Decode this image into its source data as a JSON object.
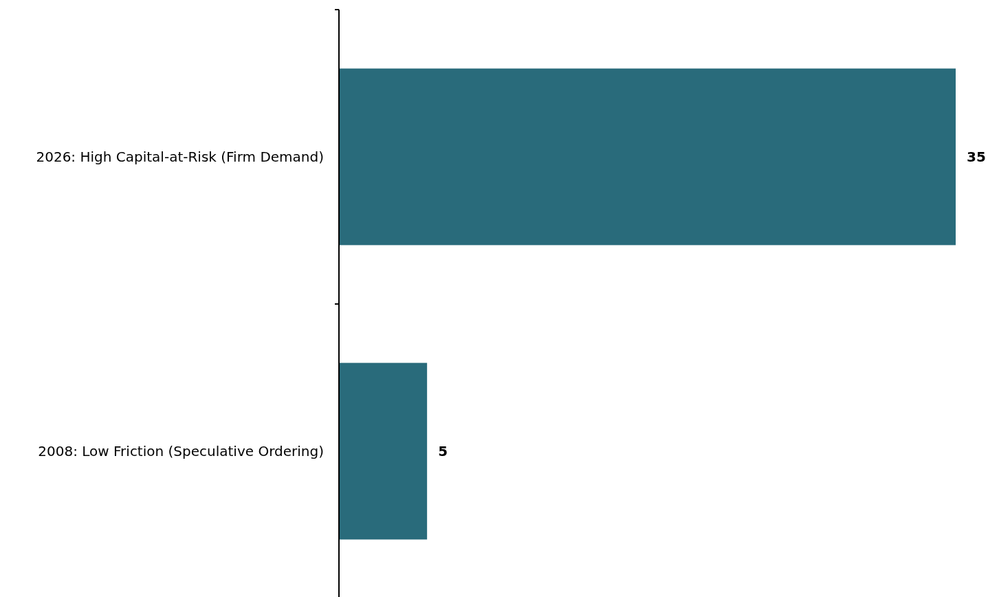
{
  "chart_data": {
    "type": "bar",
    "orientation": "horizontal",
    "categories": [
      "2026: High Capital-at-Risk (Firm Demand)",
      "2008: Low Friction (Speculative Ordering)"
    ],
    "values": [
      35,
      5
    ],
    "color": "#296b7b",
    "data_labels": true
  }
}
